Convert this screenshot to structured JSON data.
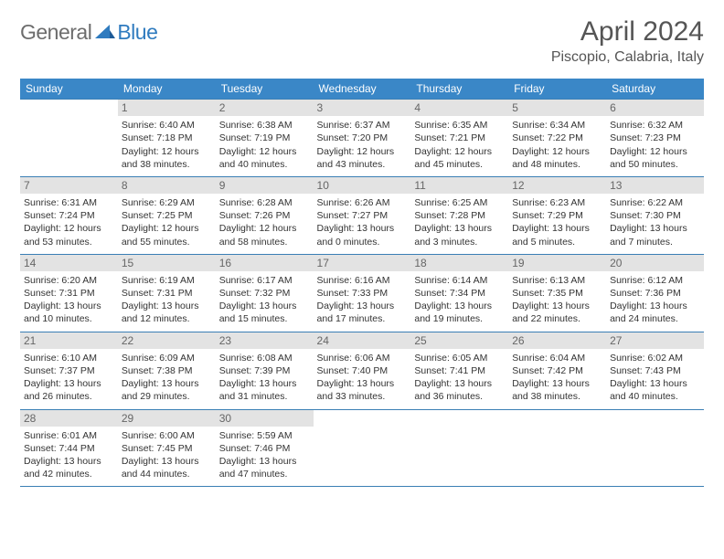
{
  "logo": {
    "general": "General",
    "blue": "Blue"
  },
  "header": {
    "month_title": "April 2024",
    "location": "Piscopio, Calabria, Italy"
  },
  "weekdays": [
    "Sunday",
    "Monday",
    "Tuesday",
    "Wednesday",
    "Thursday",
    "Friday",
    "Saturday"
  ],
  "colors": {
    "header_bg": "#3a87c7",
    "border": "#3a7fb5",
    "daynum_bg": "#e3e3e3",
    "logo_gray": "#6d6d6d",
    "logo_blue": "#2f7bbf"
  },
  "weeks": [
    [
      null,
      {
        "n": "1",
        "sr": "Sunrise: 6:40 AM",
        "ss": "Sunset: 7:18 PM",
        "d1": "Daylight: 12 hours",
        "d2": "and 38 minutes."
      },
      {
        "n": "2",
        "sr": "Sunrise: 6:38 AM",
        "ss": "Sunset: 7:19 PM",
        "d1": "Daylight: 12 hours",
        "d2": "and 40 minutes."
      },
      {
        "n": "3",
        "sr": "Sunrise: 6:37 AM",
        "ss": "Sunset: 7:20 PM",
        "d1": "Daylight: 12 hours",
        "d2": "and 43 minutes."
      },
      {
        "n": "4",
        "sr": "Sunrise: 6:35 AM",
        "ss": "Sunset: 7:21 PM",
        "d1": "Daylight: 12 hours",
        "d2": "and 45 minutes."
      },
      {
        "n": "5",
        "sr": "Sunrise: 6:34 AM",
        "ss": "Sunset: 7:22 PM",
        "d1": "Daylight: 12 hours",
        "d2": "and 48 minutes."
      },
      {
        "n": "6",
        "sr": "Sunrise: 6:32 AM",
        "ss": "Sunset: 7:23 PM",
        "d1": "Daylight: 12 hours",
        "d2": "and 50 minutes."
      }
    ],
    [
      {
        "n": "7",
        "sr": "Sunrise: 6:31 AM",
        "ss": "Sunset: 7:24 PM",
        "d1": "Daylight: 12 hours",
        "d2": "and 53 minutes."
      },
      {
        "n": "8",
        "sr": "Sunrise: 6:29 AM",
        "ss": "Sunset: 7:25 PM",
        "d1": "Daylight: 12 hours",
        "d2": "and 55 minutes."
      },
      {
        "n": "9",
        "sr": "Sunrise: 6:28 AM",
        "ss": "Sunset: 7:26 PM",
        "d1": "Daylight: 12 hours",
        "d2": "and 58 minutes."
      },
      {
        "n": "10",
        "sr": "Sunrise: 6:26 AM",
        "ss": "Sunset: 7:27 PM",
        "d1": "Daylight: 13 hours",
        "d2": "and 0 minutes."
      },
      {
        "n": "11",
        "sr": "Sunrise: 6:25 AM",
        "ss": "Sunset: 7:28 PM",
        "d1": "Daylight: 13 hours",
        "d2": "and 3 minutes."
      },
      {
        "n": "12",
        "sr": "Sunrise: 6:23 AM",
        "ss": "Sunset: 7:29 PM",
        "d1": "Daylight: 13 hours",
        "d2": "and 5 minutes."
      },
      {
        "n": "13",
        "sr": "Sunrise: 6:22 AM",
        "ss": "Sunset: 7:30 PM",
        "d1": "Daylight: 13 hours",
        "d2": "and 7 minutes."
      }
    ],
    [
      {
        "n": "14",
        "sr": "Sunrise: 6:20 AM",
        "ss": "Sunset: 7:31 PM",
        "d1": "Daylight: 13 hours",
        "d2": "and 10 minutes."
      },
      {
        "n": "15",
        "sr": "Sunrise: 6:19 AM",
        "ss": "Sunset: 7:31 PM",
        "d1": "Daylight: 13 hours",
        "d2": "and 12 minutes."
      },
      {
        "n": "16",
        "sr": "Sunrise: 6:17 AM",
        "ss": "Sunset: 7:32 PM",
        "d1": "Daylight: 13 hours",
        "d2": "and 15 minutes."
      },
      {
        "n": "17",
        "sr": "Sunrise: 6:16 AM",
        "ss": "Sunset: 7:33 PM",
        "d1": "Daylight: 13 hours",
        "d2": "and 17 minutes."
      },
      {
        "n": "18",
        "sr": "Sunrise: 6:14 AM",
        "ss": "Sunset: 7:34 PM",
        "d1": "Daylight: 13 hours",
        "d2": "and 19 minutes."
      },
      {
        "n": "19",
        "sr": "Sunrise: 6:13 AM",
        "ss": "Sunset: 7:35 PM",
        "d1": "Daylight: 13 hours",
        "d2": "and 22 minutes."
      },
      {
        "n": "20",
        "sr": "Sunrise: 6:12 AM",
        "ss": "Sunset: 7:36 PM",
        "d1": "Daylight: 13 hours",
        "d2": "and 24 minutes."
      }
    ],
    [
      {
        "n": "21",
        "sr": "Sunrise: 6:10 AM",
        "ss": "Sunset: 7:37 PM",
        "d1": "Daylight: 13 hours",
        "d2": "and 26 minutes."
      },
      {
        "n": "22",
        "sr": "Sunrise: 6:09 AM",
        "ss": "Sunset: 7:38 PM",
        "d1": "Daylight: 13 hours",
        "d2": "and 29 minutes."
      },
      {
        "n": "23",
        "sr": "Sunrise: 6:08 AM",
        "ss": "Sunset: 7:39 PM",
        "d1": "Daylight: 13 hours",
        "d2": "and 31 minutes."
      },
      {
        "n": "24",
        "sr": "Sunrise: 6:06 AM",
        "ss": "Sunset: 7:40 PM",
        "d1": "Daylight: 13 hours",
        "d2": "and 33 minutes."
      },
      {
        "n": "25",
        "sr": "Sunrise: 6:05 AM",
        "ss": "Sunset: 7:41 PM",
        "d1": "Daylight: 13 hours",
        "d2": "and 36 minutes."
      },
      {
        "n": "26",
        "sr": "Sunrise: 6:04 AM",
        "ss": "Sunset: 7:42 PM",
        "d1": "Daylight: 13 hours",
        "d2": "and 38 minutes."
      },
      {
        "n": "27",
        "sr": "Sunrise: 6:02 AM",
        "ss": "Sunset: 7:43 PM",
        "d1": "Daylight: 13 hours",
        "d2": "and 40 minutes."
      }
    ],
    [
      {
        "n": "28",
        "sr": "Sunrise: 6:01 AM",
        "ss": "Sunset: 7:44 PM",
        "d1": "Daylight: 13 hours",
        "d2": "and 42 minutes."
      },
      {
        "n": "29",
        "sr": "Sunrise: 6:00 AM",
        "ss": "Sunset: 7:45 PM",
        "d1": "Daylight: 13 hours",
        "d2": "and 44 minutes."
      },
      {
        "n": "30",
        "sr": "Sunrise: 5:59 AM",
        "ss": "Sunset: 7:46 PM",
        "d1": "Daylight: 13 hours",
        "d2": "and 47 minutes."
      },
      null,
      null,
      null,
      null
    ]
  ]
}
